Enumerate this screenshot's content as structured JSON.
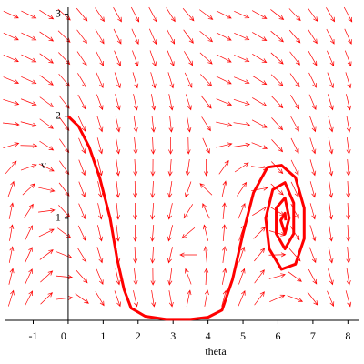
{
  "chart_data": {
    "type": "line",
    "x_label": "theta",
    "y_label": "v",
    "xlim": [
      -1.82,
      8.33
    ],
    "ylim": [
      0,
      3.05
    ],
    "xticks": [
      -1,
      0,
      1,
      2,
      3,
      4,
      5,
      6,
      7,
      8
    ],
    "yticks": [
      1,
      2,
      3
    ],
    "color": "#ff0000",
    "x": [
      0,
      0.3,
      0.6,
      0.9,
      1.2,
      1.4,
      1.6,
      1.8,
      2.2,
      2.8,
      3.5,
      4.0,
      4.4,
      4.7,
      5.0,
      5.3,
      5.7,
      6.1,
      6.5,
      6.75,
      6.75,
      6.5,
      6.1,
      5.75,
      5.65,
      5.85,
      6.2,
      6.45,
      6.45,
      6.2,
      5.95,
      5.95,
      6.2,
      6.32,
      6.2,
      6.08,
      6.2,
      6.22
    ],
    "values": [
      2.0,
      1.9,
      1.7,
      1.4,
      1.0,
      0.6,
      0.3,
      0.12,
      0.04,
      0.01,
      0.01,
      0.03,
      0.1,
      0.4,
      0.85,
      1.25,
      1.5,
      1.52,
      1.4,
      1.1,
      0.8,
      0.55,
      0.5,
      0.7,
      1.0,
      1.28,
      1.35,
      1.15,
      0.85,
      0.7,
      0.85,
      1.1,
      1.2,
      1.0,
      0.85,
      0.98,
      1.05,
      0.98
    ]
  }
}
